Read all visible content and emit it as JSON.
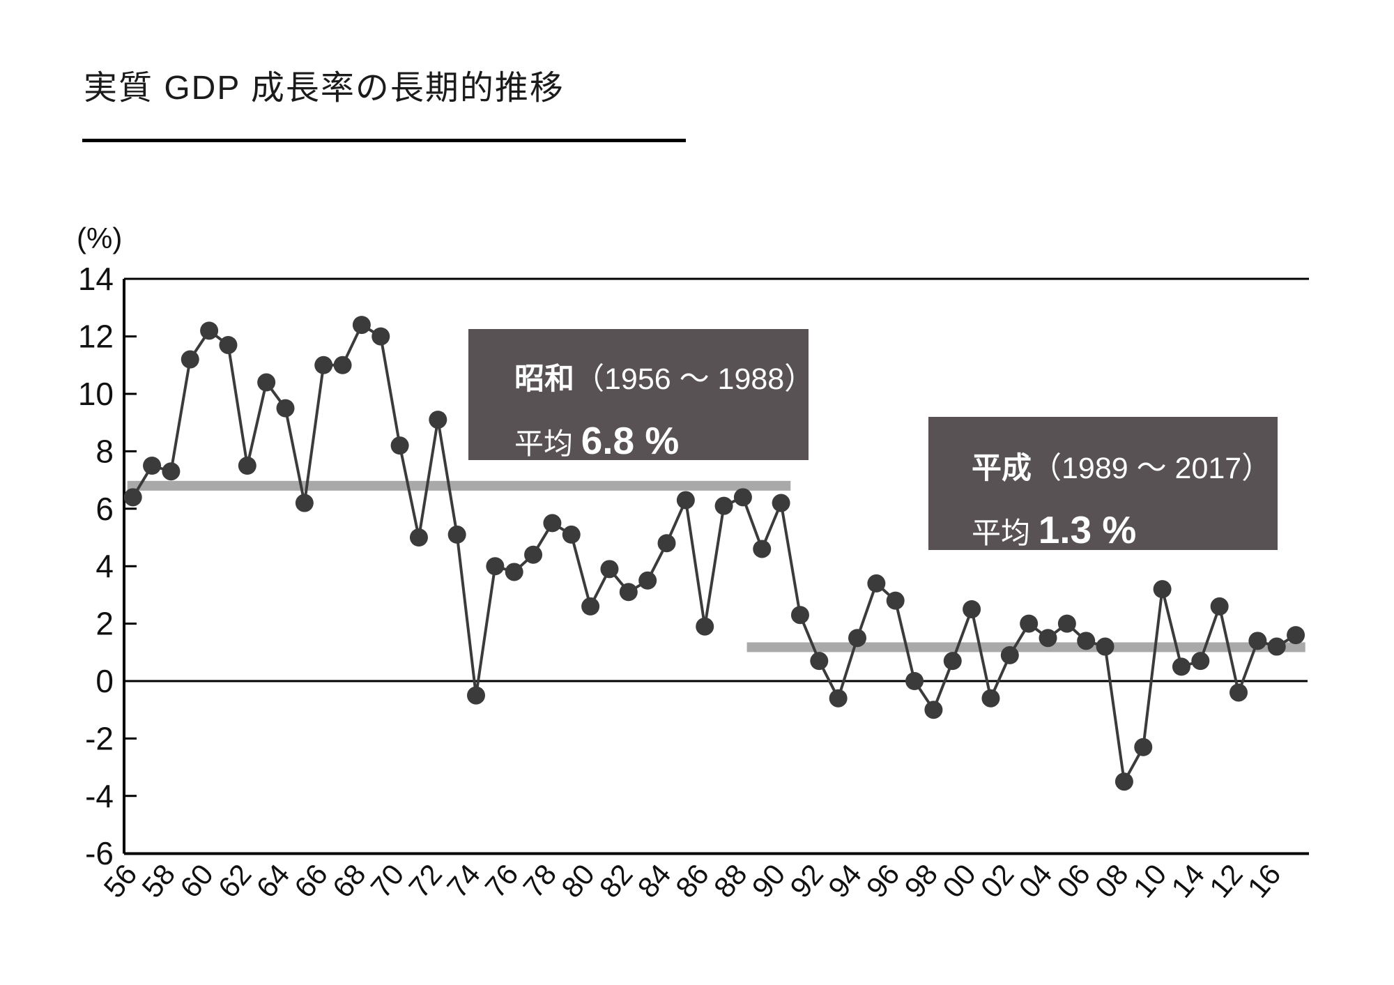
{
  "title": "実質 GDP 成長率の長期的推移",
  "y_axis": {
    "unit_label": "(%)",
    "tick_labels": [
      "14",
      "12",
      "10",
      "8",
      "6",
      "4",
      "2",
      "0",
      "-2",
      "-4",
      "-6"
    ],
    "max": 14,
    "min": -6
  },
  "x_axis": {
    "tick_labels": [
      "56",
      "58",
      "60",
      "62",
      "64",
      "66",
      "68",
      "70",
      "72",
      "74",
      "76",
      "78",
      "80",
      "82",
      "84",
      "86",
      "88",
      "90",
      "92",
      "94",
      "96",
      "98",
      "00",
      "02",
      "04",
      "06",
      "08",
      "10",
      "14",
      "12",
      "16"
    ]
  },
  "annotation_boxes": [
    {
      "era": "昭和",
      "range": "（1956 ～ 1988）",
      "avg_label": "平均",
      "avg_value": "6.8 %",
      "bg": "#585254",
      "fg": "#ffffff"
    },
    {
      "era": "平成",
      "range": "（1989 ～ 2017）",
      "avg_label": "平均",
      "avg_value": "1.3 %",
      "bg": "#585254",
      "fg": "#ffffff"
    }
  ],
  "colors": {
    "series": "#3b3b3b",
    "average_line": "#a9a9a9",
    "axis": "#000000",
    "text": "#111111"
  },
  "chart_data": {
    "type": "line",
    "title": "実質 GDP 成長率の長期的推移",
    "xlabel": "",
    "ylabel": "(%)",
    "ylim": [
      -6,
      14
    ],
    "grid": false,
    "legend": "none",
    "x": [
      1956,
      1957,
      1958,
      1959,
      1960,
      1961,
      1962,
      1963,
      1964,
      1965,
      1966,
      1967,
      1968,
      1969,
      1970,
      1971,
      1972,
      1973,
      1974,
      1975,
      1976,
      1977,
      1978,
      1979,
      1980,
      1981,
      1982,
      1983,
      1984,
      1985,
      1986,
      1987,
      1988,
      1989,
      1990,
      1991,
      1992,
      1993,
      1994,
      1995,
      1996,
      1997,
      1998,
      1999,
      2000,
      2001,
      2002,
      2003,
      2004,
      2005,
      2006,
      2007,
      2008,
      2009,
      2010,
      2011,
      2012,
      2013,
      2014,
      2015,
      2016,
      2017
    ],
    "values": [
      6.4,
      7.5,
      7.3,
      11.2,
      12.2,
      11.7,
      7.5,
      10.4,
      9.5,
      6.2,
      11.0,
      11.0,
      12.4,
      12.0,
      8.2,
      5.0,
      9.1,
      5.1,
      -0.5,
      4.0,
      3.8,
      4.4,
      5.5,
      5.1,
      2.6,
      3.9,
      3.1,
      3.5,
      4.8,
      6.3,
      1.9,
      6.1,
      6.4,
      4.6,
      6.2,
      2.3,
      0.7,
      -0.6,
      1.5,
      3.4,
      2.8,
      0.0,
      -1.0,
      0.7,
      2.5,
      -0.6,
      0.9,
      2.0,
      1.5,
      2.0,
      1.4,
      1.2,
      -3.5,
      -2.3,
      3.2,
      0.5,
      0.7,
      2.6,
      -0.4,
      1.4,
      1.2,
      1.6
    ],
    "average_lines": [
      {
        "era": "昭和",
        "value": 6.8,
        "span_years": [
          1956,
          1990.5
        ]
      },
      {
        "era": "平成",
        "value": 1.3,
        "span_years": [
          1988.5,
          2017.5
        ]
      }
    ]
  }
}
